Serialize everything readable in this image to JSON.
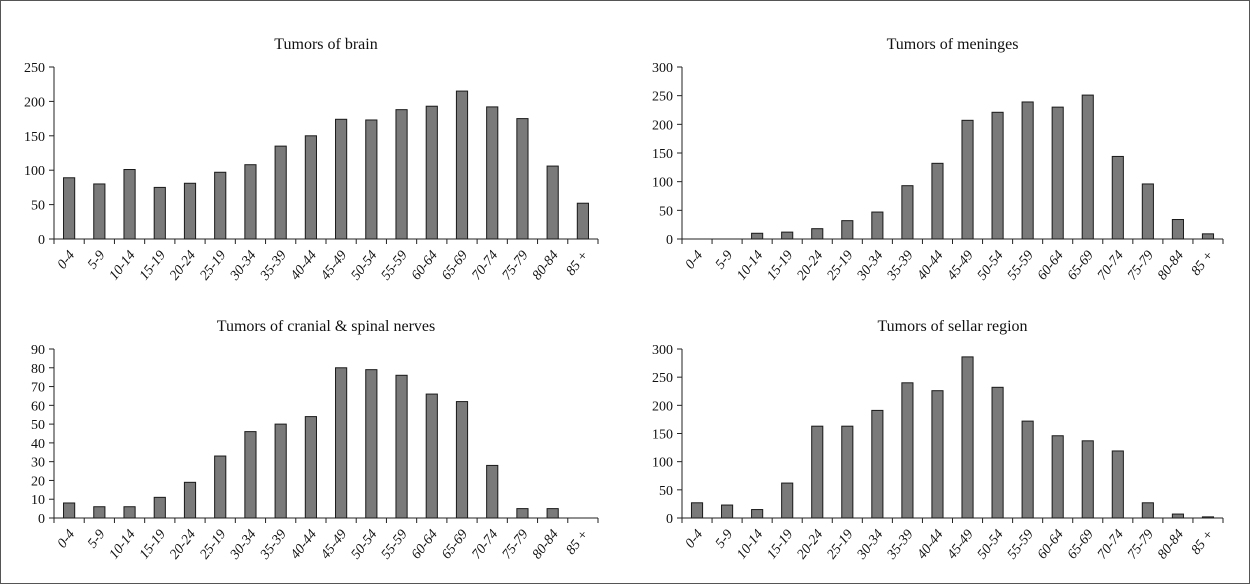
{
  "colors": {
    "bar_fill": "#7a7a7a",
    "bar_stroke": "#1a1a1a",
    "axis": "#222222"
  },
  "chart_data": [
    {
      "type": "bar",
      "title": "Tumors of brain",
      "categories": [
        "0-4",
        "5-9",
        "10-14",
        "15-19",
        "20-24",
        "25-19",
        "30-34",
        "35-39",
        "40-44",
        "45-49",
        "50-54",
        "55-59",
        "60-64",
        "65-69",
        "70-74",
        "75-79",
        "80-84",
        "85 +"
      ],
      "values": [
        89,
        80,
        101,
        75,
        81,
        97,
        108,
        135,
        150,
        174,
        173,
        188,
        193,
        215,
        192,
        175,
        106,
        52
      ],
      "ylim": [
        0,
        250
      ],
      "yticks": [
        0,
        50,
        100,
        150,
        200,
        250
      ],
      "xlabel": "",
      "ylabel": "",
      "grid": false
    },
    {
      "type": "bar",
      "title": "Tumors of meninges",
      "categories": [
        "0-4",
        "5-9",
        "10-14",
        "15-19",
        "20-24",
        "25-19",
        "30-34",
        "35-39",
        "40-44",
        "45-49",
        "50-54",
        "55-59",
        "60-64",
        "65-69",
        "70-74",
        "75-79",
        "80-84",
        "85 +"
      ],
      "values": [
        0,
        0,
        10,
        12,
        18,
        32,
        47,
        93,
        132,
        207,
        221,
        239,
        230,
        251,
        144,
        96,
        34,
        9
      ],
      "ylim": [
        0,
        300
      ],
      "yticks": [
        0,
        50,
        100,
        150,
        200,
        250,
        300
      ],
      "xlabel": "",
      "ylabel": "",
      "grid": false
    },
    {
      "type": "bar",
      "title": "Tumors of cranial & spinal nerves",
      "categories": [
        "0-4",
        "5-9",
        "10-14",
        "15-19",
        "20-24",
        "25-19",
        "30-34",
        "35-39",
        "40-44",
        "45-49",
        "50-54",
        "55-59",
        "60-64",
        "65-69",
        "70-74",
        "75-79",
        "80-84",
        "85 +"
      ],
      "values": [
        8,
        6,
        6,
        11,
        19,
        33,
        46,
        50,
        54,
        80,
        79,
        76,
        66,
        62,
        28,
        5,
        5,
        0
      ],
      "ylim": [
        0,
        90
      ],
      "yticks": [
        0,
        10,
        20,
        30,
        40,
        50,
        60,
        70,
        80,
        90
      ],
      "xlabel": "",
      "ylabel": "",
      "grid": false
    },
    {
      "type": "bar",
      "title": "Tumors of sellar region",
      "categories": [
        "0-4",
        "5-9",
        "10-14",
        "15-19",
        "20-24",
        "25-19",
        "30-34",
        "35-39",
        "40-44",
        "45-49",
        "50-54",
        "55-59",
        "60-64",
        "65-69",
        "70-74",
        "75-79",
        "80-84",
        "85 +"
      ],
      "values": [
        27,
        23,
        15,
        62,
        163,
        163,
        191,
        240,
        226,
        286,
        232,
        172,
        146,
        137,
        119,
        27,
        7,
        2
      ],
      "ylim": [
        0,
        300
      ],
      "yticks": [
        0,
        50,
        100,
        150,
        200,
        250,
        300
      ],
      "xlabel": "",
      "ylabel": "",
      "grid": false
    }
  ]
}
